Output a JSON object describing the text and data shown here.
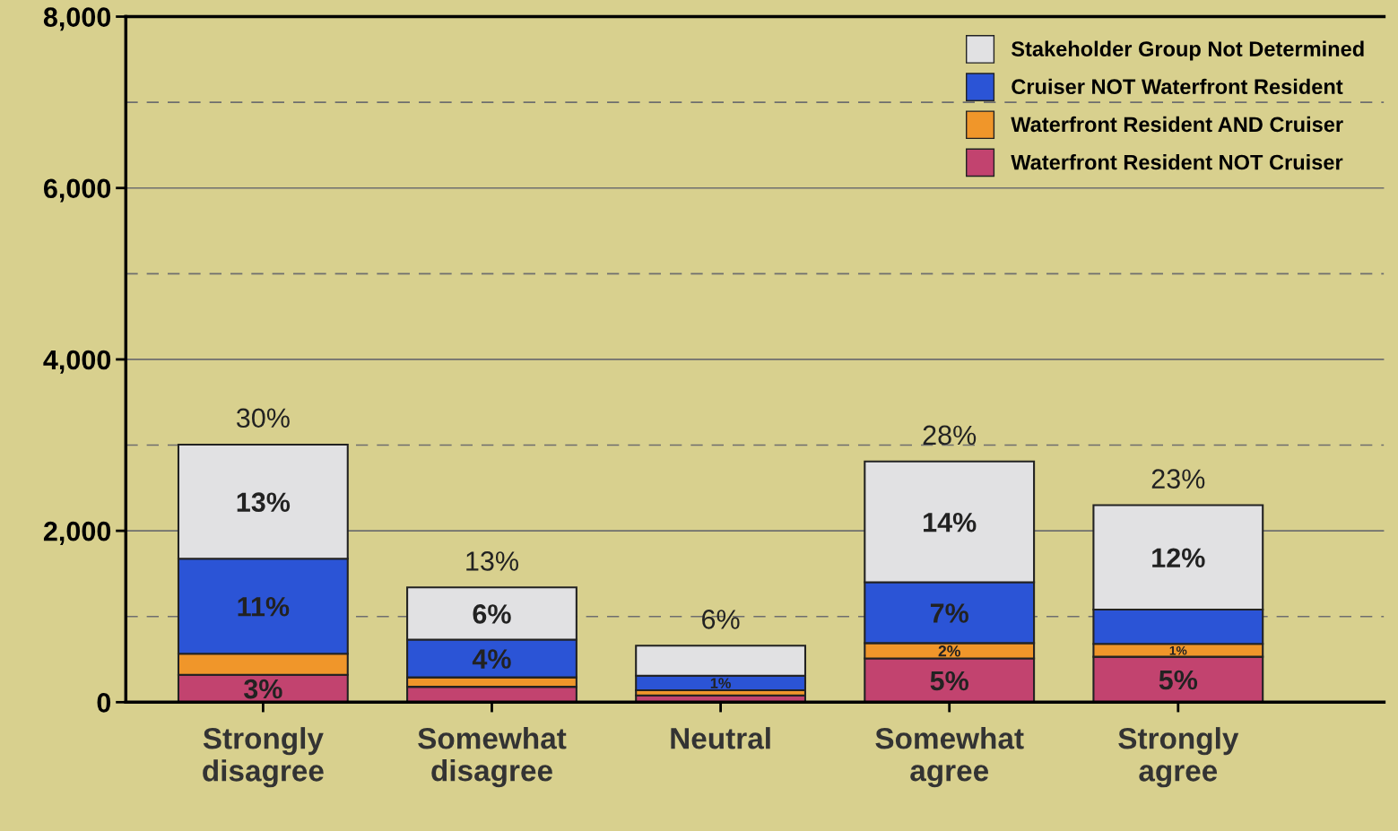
{
  "chart_data": {
    "type": "bar",
    "stacked": true,
    "categories": [
      "Strongly\ndisagree",
      "Somewhat\ndisagree",
      "Neutral",
      "Somewhat\nagree",
      "Strongly\nagree"
    ],
    "series": [
      {
        "name": "Waterfront Resident NOT Cruiser",
        "color": "#c2436f",
        "values": [
          320,
          180,
          80,
          510,
          530
        ]
      },
      {
        "name": "Waterfront Resident AND Cruiser",
        "color": "#f0962a",
        "values": [
          245,
          110,
          60,
          180,
          150
        ]
      },
      {
        "name": "Cruiser NOT Waterfront Resident",
        "color": "#2b54d6",
        "values": [
          1110,
          440,
          170,
          710,
          400
        ]
      },
      {
        "name": "Stakeholder Group Not Determined",
        "color": "#e1e1e3",
        "values": [
          1330,
          610,
          350,
          1410,
          1220
        ]
      }
    ],
    "annotations": [
      {
        "text": "3%",
        "x": "Strongly\ndisagree",
        "y": 320
      },
      {
        "text": "11%",
        "x": "Strongly\ndisagree",
        "y": 1680
      },
      {
        "text": "13%",
        "x": "Strongly\ndisagree",
        "y": 3010
      },
      {
        "text": "30%",
        "x": "Strongly\ndisagree",
        "y": 3010
      },
      {
        "text": "4%",
        "x": "Somewhat\ndisagree",
        "y": 730
      },
      {
        "text": "6%",
        "x": "Somewhat\ndisagree",
        "y": 1340
      },
      {
        "text": "13%",
        "x": "Somewhat\ndisagree",
        "y": 1340
      },
      {
        "text": "1%",
        "x": "Neutral",
        "y": 310
      },
      {
        "text": "6%",
        "x": "Neutral",
        "y": 660
      },
      {
        "text": "5%",
        "x": "Somewhat\nagree",
        "y": 510
      },
      {
        "text": "2%",
        "x": "Somewhat\nagree",
        "y": 690
      },
      {
        "text": "7%",
        "x": "Somewhat\nagree",
        "y": 1400
      },
      {
        "text": "14%",
        "x": "Somewhat\nagree",
        "y": 2810
      },
      {
        "text": "28%",
        "x": "Somewhat\nagree",
        "y": 2810
      },
      {
        "text": "5%",
        "x": "Strongly\nagree",
        "y": 530
      },
      {
        "text": "1%",
        "x": "Strongly\nagree",
        "y": 680
      },
      {
        "text": "12%",
        "x": "Strongly\nagree",
        "y": 2300
      },
      {
        "text": "23%",
        "x": "Strongly\nagree",
        "y": 2300
      }
    ],
    "ylim": [
      0,
      8000
    ],
    "yticks": [
      {
        "value": 0,
        "label": "0"
      },
      {
        "value": 2000,
        "label": "2,000"
      },
      {
        "value": 4000,
        "label": "4,000"
      },
      {
        "value": 6000,
        "label": "6,000"
      },
      {
        "value": 8000,
        "label": "8,000"
      }
    ],
    "grid": "y",
    "ref_lines": [
      {
        "axis": "y",
        "value": 1000,
        "line_style": "dashed",
        "color": "#6e6e6e"
      },
      {
        "axis": "y",
        "value": 3000,
        "line_style": "dashed",
        "color": "#6e6e6e"
      },
      {
        "axis": "y",
        "value": 5000,
        "line_style": "dashed",
        "color": "#6e6e6e"
      },
      {
        "axis": "y",
        "value": 7000,
        "line_style": "dashed",
        "color": "#6e6e6e"
      }
    ],
    "legend": "top right"
  }
}
